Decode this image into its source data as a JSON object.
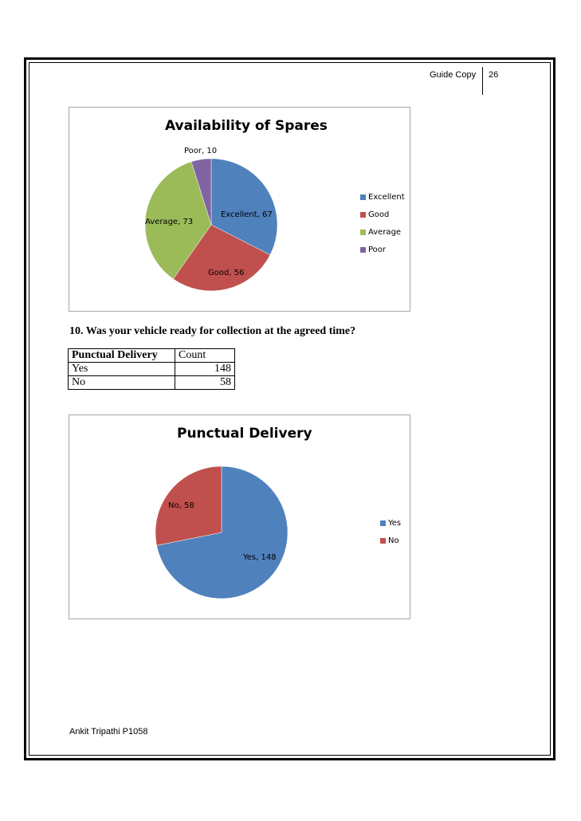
{
  "header": {
    "label": "Guide Copy",
    "page_number": "26"
  },
  "question": "10. Was your vehicle ready for collection at the agreed time?",
  "table": {
    "headers": [
      "Punctual Delivery",
      "Count"
    ],
    "rows": [
      {
        "label": "Yes",
        "count": "148"
      },
      {
        "label": "No",
        "count": "58"
      }
    ]
  },
  "footer": {
    "text": "Ankit Tripathi P1058"
  },
  "chart_data": [
    {
      "type": "pie",
      "title": "Availability of Spares",
      "categories": [
        "Excellent",
        "Good",
        "Average",
        "Poor"
      ],
      "values": [
        67,
        56,
        73,
        10
      ],
      "data_labels": [
        "Excellent, 67",
        "Good, 56",
        "Average, 73",
        "Poor, 10"
      ],
      "colors": [
        "#4f81bd",
        "#c0504d",
        "#9bbb59",
        "#8064a2"
      ],
      "legend": {
        "position": "right",
        "entries": [
          "Excellent",
          "Good",
          "Average",
          "Poor"
        ]
      }
    },
    {
      "type": "pie",
      "title": "Punctual Delivery",
      "categories": [
        "Yes",
        "No"
      ],
      "values": [
        148,
        58
      ],
      "data_labels": [
        "Yes, 148",
        "No, 58"
      ],
      "colors": [
        "#4f81bd",
        "#c0504d"
      ],
      "legend": {
        "position": "right",
        "entries": [
          "Yes",
          "No"
        ]
      }
    }
  ]
}
